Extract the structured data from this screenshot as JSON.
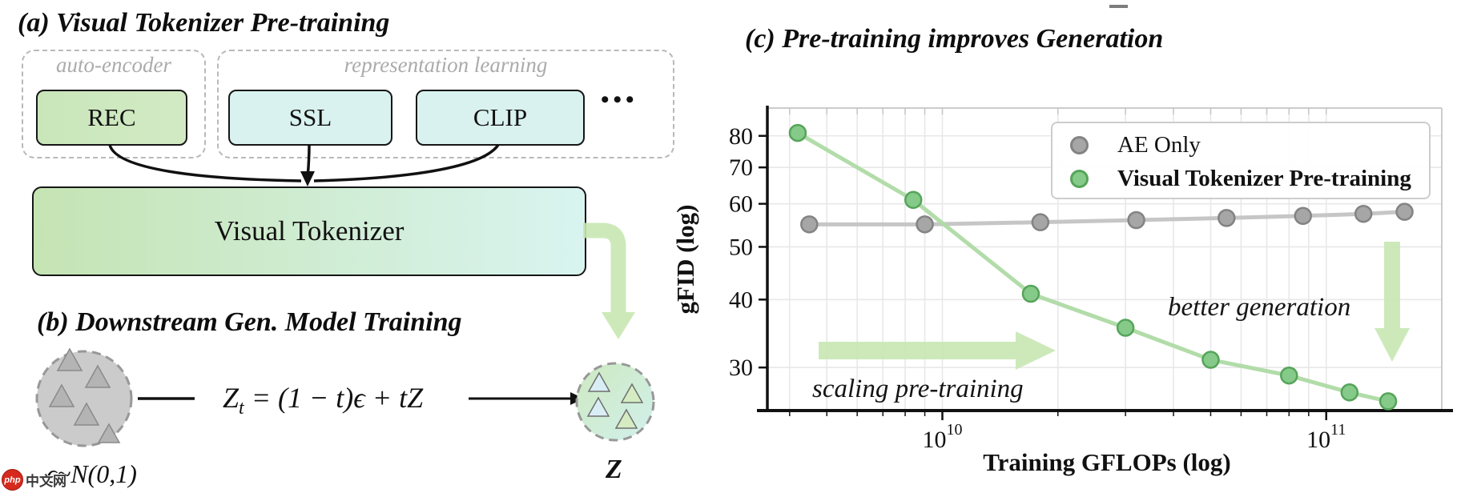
{
  "panel_a": {
    "title": "(a) Visual Tokenizer Pre-training",
    "groups": [
      {
        "label": "auto-encoder",
        "boxes": [
          {
            "label": "REC"
          }
        ]
      },
      {
        "label": "representation learning",
        "boxes": [
          {
            "label": "SSL"
          },
          {
            "label": "CLIP"
          }
        ]
      }
    ],
    "more_dots": "•••",
    "tokenizer_label": "Visual Tokenizer"
  },
  "panel_b": {
    "title": "(b) Downstream Gen. Model Training",
    "equation": {
      "lhs": "Z",
      "lhs_sub": "t",
      "rhs": " = (1 − t)ϵ + tZ"
    },
    "noise_label": "ϵ~N(0,1)",
    "latent_label": "Z"
  },
  "panel_c": {
    "title": "(c) Pre-training improves Generation",
    "annotations": {
      "scaling": "scaling pre-training",
      "better": "better generation"
    },
    "arrow_color": "#c8e7b2"
  },
  "watermark": {
    "logo_text": "php",
    "site_text": "中文网"
  },
  "chart_data": {
    "type": "line",
    "title": "(c) Pre-training improves Generation",
    "xlabel": "Training GFLOPs (log)",
    "ylabel": "gFID (log)",
    "xscale": "log",
    "yscale": "log",
    "xlim": [
      3500000000.0,
      200000000000.0
    ],
    "ylim": [
      25,
      90
    ],
    "xticks": [
      10000000000.0,
      100000000000.0
    ],
    "yticks": [
      30,
      40,
      50,
      60,
      70,
      80
    ],
    "grid": true,
    "legend_position": "upper right",
    "series": [
      {
        "name": "AE Only",
        "line_color": "#c3c3c3",
        "fill_color": "#a6a6a6",
        "edge_color": "#838383",
        "x": [
          4500000000.0,
          9000000000.0,
          18000000000.0,
          32000000000.0,
          55000000000.0,
          87000000000.0,
          125000000000.0,
          160000000000.0
        ],
        "y": [
          55,
          55,
          55.5,
          56,
          56.5,
          57,
          57.5,
          58
        ]
      },
      {
        "name": "Visual Tokenizer Pre-training",
        "line_color": "#aedaa4",
        "fill_color": "#85ca88",
        "edge_color": "#55a45a",
        "x": [
          4200000000.0,
          8400000000.0,
          17000000000.0,
          30000000000.0,
          50000000000.0,
          80000000000.0,
          115000000000.0,
          145000000000.0
        ],
        "y": [
          81,
          61,
          41,
          35.5,
          31,
          29,
          27,
          26
        ]
      }
    ]
  }
}
